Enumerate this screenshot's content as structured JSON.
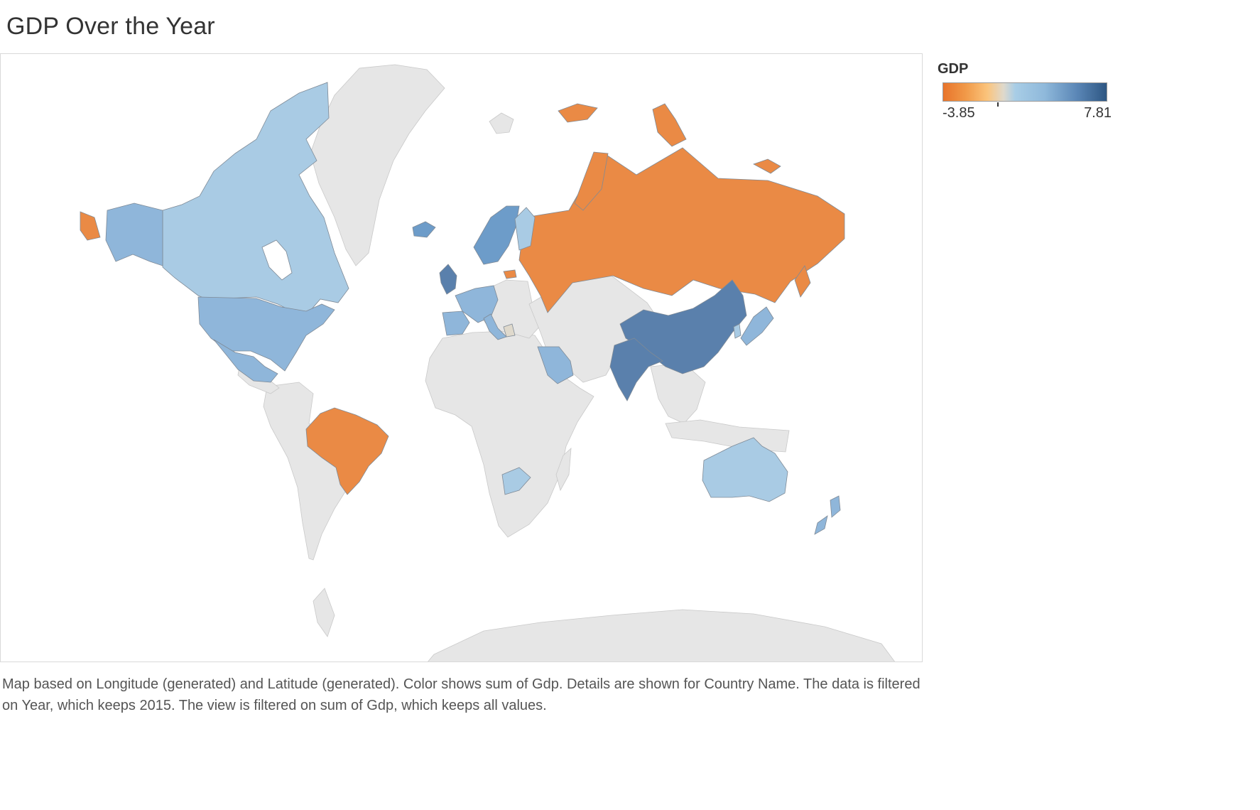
{
  "title": "GDP Over the Year",
  "legend": {
    "title": "GDP",
    "min": "-3.85",
    "max": "7.81",
    "colors": {
      "low": "#e8742b",
      "mid": "#dfd9cc",
      "high": "#2e5783"
    }
  },
  "caption": "Map based on Longitude (generated) and Latitude (generated).  Color shows sum of Gdp.  Details are shown for Country Name. The data is filtered on Year, which keeps 2015. The view is filtered on sum of Gdp, which keeps all values.",
  "colors": {
    "orange": "#ea8a45",
    "light_blue": "#a9cbe4",
    "mid_blue": "#8fb6da",
    "blue": "#6d9cc9",
    "dark_blue": "#5a80ac",
    "no_data": "#e6e6e6"
  }
}
